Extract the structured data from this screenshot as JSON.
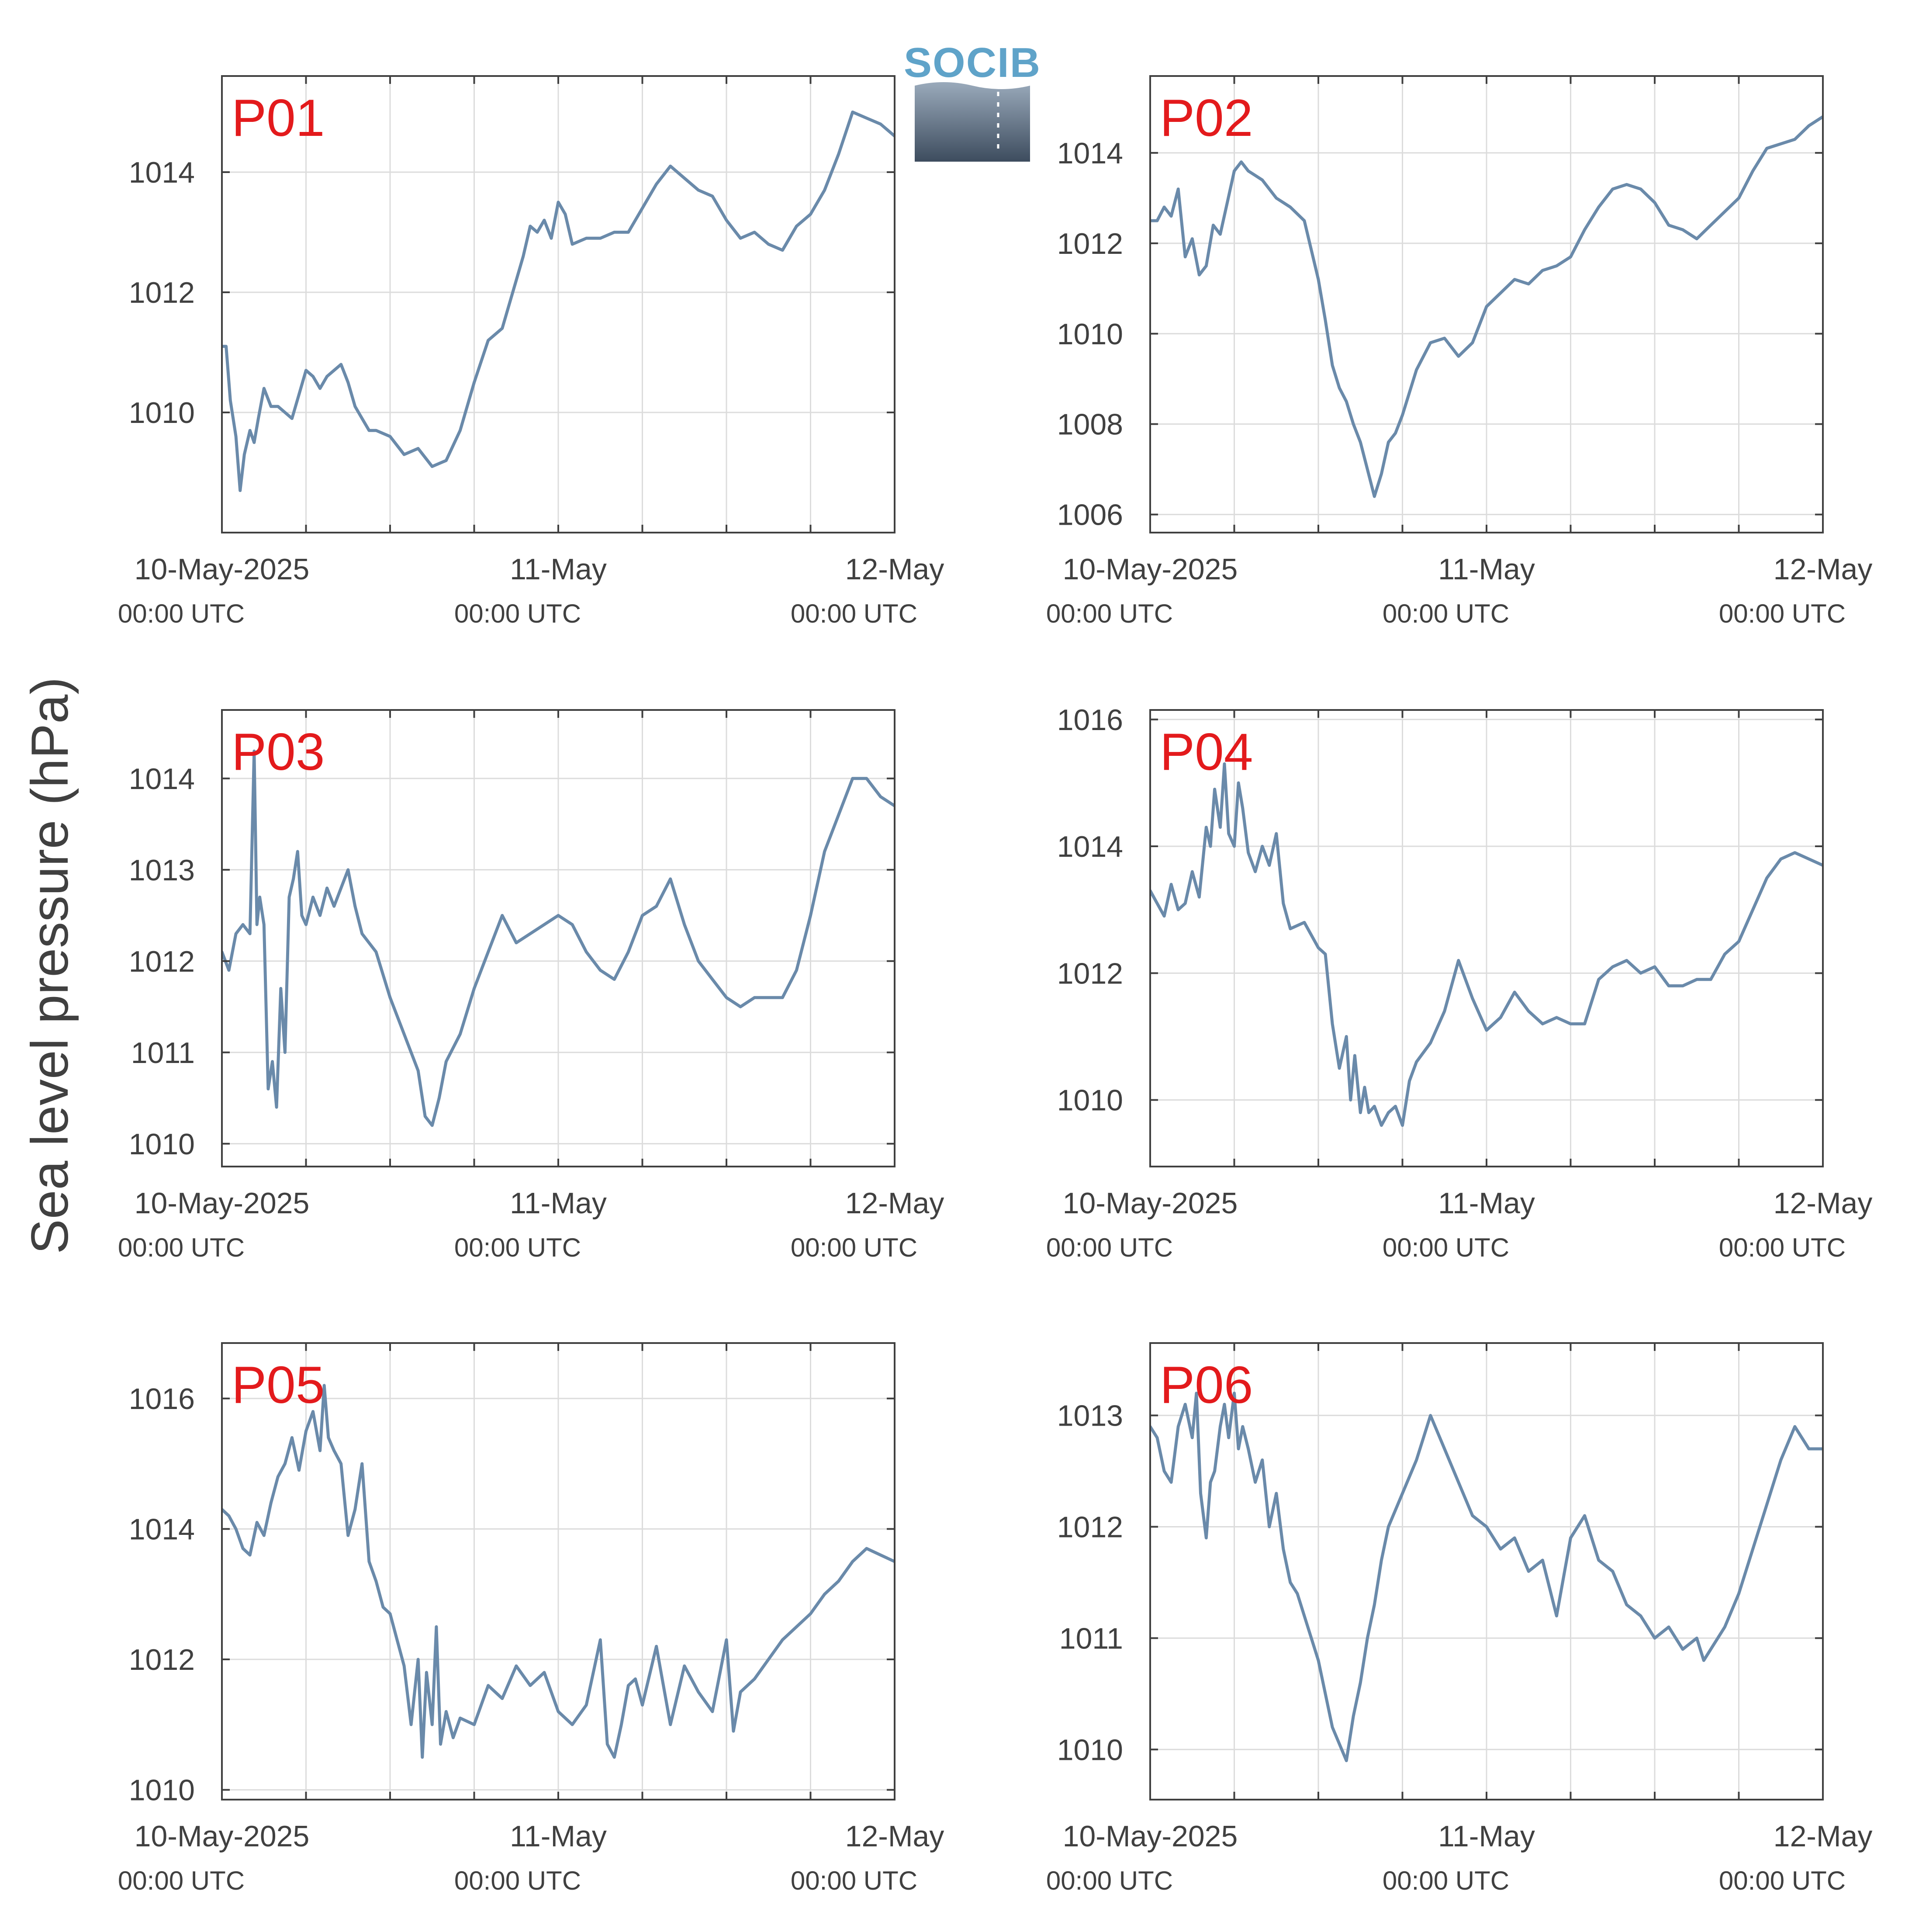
{
  "figure": {
    "ylabel": "Sea level pressure (hPa)",
    "logo": {
      "text": "SOCIB",
      "icon": "socib-logo-icon",
      "colors": {
        "text": "#5fa3c9",
        "gradient_top": "#9aaabb",
        "gradient_bottom": "#3d4c5e"
      }
    },
    "colors": {
      "line": "#6a8aaa",
      "panel_label": "#e31a1c",
      "grid": "#dcdcdc",
      "axis": "#404040"
    }
  },
  "chart_data": [
    {
      "type": "line",
      "title": "P01",
      "x_unit": "hours since 10-May-2025 00:00 UTC",
      "xlim": [
        0,
        48
      ],
      "xticks": [
        0,
        6,
        12,
        18,
        24,
        30,
        36,
        42,
        48
      ],
      "xtick_labels": [
        {
          "x": 0,
          "date": "10-May-2025",
          "time": "00:00 UTC"
        },
        {
          "x": 24,
          "date": "11-May",
          "time": "00:00 UTC"
        },
        {
          "x": 48,
          "date": "12-May",
          "time": "00:00 UTC"
        }
      ],
      "ylim": [
        1008,
        1015.6
      ],
      "yticks": [
        1010,
        1012,
        1014
      ],
      "grid": true,
      "x": [
        0,
        0.3,
        0.6,
        1,
        1.3,
        1.6,
        2,
        2.3,
        2.6,
        3,
        3.5,
        4,
        4.5,
        5,
        5.5,
        6,
        6.5,
        7,
        7.5,
        8,
        8.5,
        9,
        9.5,
        10,
        10.5,
        11,
        12,
        13,
        14,
        15,
        16,
        17,
        18,
        19,
        20,
        21,
        21.5,
        22,
        22.5,
        23,
        23.5,
        24,
        24.5,
        25,
        26,
        27,
        28,
        29,
        30,
        31,
        32,
        33,
        34,
        35,
        36,
        37,
        38,
        39,
        40,
        41,
        42,
        43,
        44,
        45,
        46,
        47,
        48
      ],
      "series": [
        {
          "values": [
            1011.1,
            1011.1,
            1010.2,
            1009.6,
            1008.7,
            1009.3,
            1009.7,
            1009.5,
            1009.9,
            1010.4,
            1010.1,
            1010.1,
            1010.0,
            1009.9,
            1010.3,
            1010.7,
            1010.6,
            1010.4,
            1010.6,
            1010.7,
            1010.8,
            1010.5,
            1010.1,
            1009.9,
            1009.7,
            1009.7,
            1009.6,
            1009.3,
            1009.4,
            1009.1,
            1009.2,
            1009.7,
            1010.5,
            1011.2,
            1011.4,
            1012.2,
            1012.6,
            1013.1,
            1013.0,
            1013.2,
            1012.9,
            1013.5,
            1013.3,
            1012.8,
            1012.9,
            1012.9,
            1013.0,
            1013.0,
            1013.4,
            1013.8,
            1014.1,
            1013.9,
            1013.7,
            1013.6,
            1013.2,
            1012.9,
            1013.0,
            1012.8,
            1012.7,
            1013.1,
            1013.3,
            1013.7,
            1014.3,
            1015.0,
            1014.9,
            1014.8,
            1014.6
          ]
        }
      ]
    },
    {
      "type": "line",
      "title": "P02",
      "x_unit": "hours since 10-May-2025 00:00 UTC",
      "xlim": [
        0,
        48
      ],
      "xticks": [
        0,
        6,
        12,
        18,
        24,
        30,
        36,
        42,
        48
      ],
      "xtick_labels": [
        {
          "x": 0,
          "date": "10-May-2025",
          "time": "00:00 UTC"
        },
        {
          "x": 24,
          "date": "11-May",
          "time": "00:00 UTC"
        },
        {
          "x": 48,
          "date": "12-May",
          "time": "00:00 UTC"
        }
      ],
      "ylim": [
        1005.6,
        1015.7
      ],
      "yticks": [
        1006,
        1008,
        1010,
        1012,
        1014
      ],
      "grid": true,
      "x": [
        0,
        0.5,
        1,
        1.5,
        2,
        2.5,
        3,
        3.5,
        4,
        4.5,
        5,
        5.5,
        6,
        6.5,
        7,
        7.5,
        8,
        9,
        10,
        11,
        12,
        12.5,
        13,
        13.5,
        14,
        14.5,
        15,
        15.5,
        16,
        16.5,
        17,
        17.5,
        18,
        19,
        20,
        21,
        22,
        23,
        24,
        25,
        26,
        27,
        28,
        29,
        30,
        31,
        32,
        33,
        34,
        35,
        36,
        37,
        38,
        39,
        40,
        41,
        42,
        43,
        44,
        45,
        46,
        47,
        48
      ],
      "series": [
        {
          "values": [
            1012.5,
            1012.5,
            1012.8,
            1012.6,
            1013.2,
            1011.7,
            1012.1,
            1011.3,
            1011.5,
            1012.4,
            1012.2,
            1012.9,
            1013.6,
            1013.8,
            1013.6,
            1013.5,
            1013.4,
            1013.0,
            1012.8,
            1012.5,
            1011.2,
            1010.3,
            1009.3,
            1008.8,
            1008.5,
            1008.0,
            1007.6,
            1007.0,
            1006.4,
            1006.9,
            1007.6,
            1007.8,
            1008.2,
            1009.2,
            1009.8,
            1009.9,
            1009.5,
            1009.8,
            1010.6,
            1010.9,
            1011.2,
            1011.1,
            1011.4,
            1011.5,
            1011.7,
            1012.3,
            1012.8,
            1013.2,
            1013.3,
            1013.2,
            1012.9,
            1012.4,
            1012.3,
            1012.1,
            1012.4,
            1012.7,
            1013.0,
            1013.6,
            1014.1,
            1014.2,
            1014.3,
            1014.6,
            1014.8
          ]
        }
      ]
    },
    {
      "type": "line",
      "title": "P03",
      "x_unit": "hours since 10-May-2025 00:00 UTC",
      "xlim": [
        0,
        48
      ],
      "xticks": [
        0,
        6,
        12,
        18,
        24,
        30,
        36,
        42,
        48
      ],
      "xtick_labels": [
        {
          "x": 0,
          "date": "10-May-2025",
          "time": "00:00 UTC"
        },
        {
          "x": 24,
          "date": "11-May",
          "time": "00:00 UTC"
        },
        {
          "x": 48,
          "date": "12-May",
          "time": "00:00 UTC"
        }
      ],
      "ylim": [
        1009.75,
        1014.75
      ],
      "yticks": [
        1010,
        1011,
        1012,
        1013,
        1014
      ],
      "grid": true,
      "x": [
        0,
        0.5,
        1,
        1.5,
        2,
        2.3,
        2.5,
        2.7,
        3,
        3.3,
        3.6,
        3.9,
        4.2,
        4.5,
        4.8,
        5.1,
        5.4,
        5.7,
        6,
        6.5,
        7,
        7.5,
        8,
        8.5,
        9,
        9.5,
        10,
        11,
        12,
        13,
        14,
        14.5,
        15,
        15.5,
        16,
        17,
        18,
        19,
        20,
        21,
        22,
        23,
        24,
        25,
        26,
        27,
        28,
        29,
        30,
        31,
        32,
        33,
        34,
        35,
        36,
        37,
        38,
        39,
        40,
        41,
        42,
        43,
        44,
        45,
        46,
        47,
        48
      ],
      "series": [
        {
          "values": [
            1012.1,
            1011.9,
            1012.3,
            1012.4,
            1012.3,
            1014.3,
            1012.4,
            1012.7,
            1012.4,
            1010.6,
            1010.9,
            1010.4,
            1011.7,
            1011.0,
            1012.7,
            1012.9,
            1013.2,
            1012.5,
            1012.4,
            1012.7,
            1012.5,
            1012.8,
            1012.6,
            1012.8,
            1013.0,
            1012.6,
            1012.3,
            1012.1,
            1011.6,
            1011.2,
            1010.8,
            1010.3,
            1010.2,
            1010.5,
            1010.9,
            1011.2,
            1011.7,
            1012.1,
            1012.5,
            1012.2,
            1012.3,
            1012.4,
            1012.5,
            1012.4,
            1012.1,
            1011.9,
            1011.8,
            1012.1,
            1012.5,
            1012.6,
            1012.9,
            1012.4,
            1012.0,
            1011.8,
            1011.6,
            1011.5,
            1011.6,
            1011.6,
            1011.6,
            1011.9,
            1012.5,
            1013.2,
            1013.6,
            1014.0,
            1014.0,
            1013.8,
            1013.7
          ]
        }
      ]
    },
    {
      "type": "line",
      "title": "P04",
      "x_unit": "hours since 10-May-2025 00:00 UTC",
      "xlim": [
        0,
        48
      ],
      "xticks": [
        0,
        6,
        12,
        18,
        24,
        30,
        36,
        42,
        48
      ],
      "xtick_labels": [
        {
          "x": 0,
          "date": "10-May-2025",
          "time": "00:00 UTC"
        },
        {
          "x": 24,
          "date": "11-May",
          "time": "00:00 UTC"
        },
        {
          "x": 48,
          "date": "12-May",
          "time": "00:00 UTC"
        }
      ],
      "ylim": [
        1008.95,
        1016.15
      ],
      "yticks": [
        1010,
        1012,
        1014,
        1016
      ],
      "grid": true,
      "x": [
        0,
        0.5,
        1,
        1.5,
        2,
        2.5,
        3,
        3.5,
        4,
        4.3,
        4.6,
        5,
        5.3,
        5.6,
        6,
        6.3,
        6.6,
        7,
        7.5,
        8,
        8.5,
        9,
        9.5,
        10,
        11,
        12,
        12.5,
        13,
        13.5,
        14,
        14.3,
        14.6,
        15,
        15.3,
        15.6,
        16,
        16.5,
        17,
        17.5,
        18,
        18.5,
        19,
        20,
        21,
        22,
        23,
        24,
        25,
        26,
        27,
        28,
        29,
        30,
        31,
        32,
        33,
        34,
        35,
        36,
        37,
        38,
        39,
        40,
        41,
        42,
        43,
        44,
        45,
        46,
        47,
        48
      ],
      "series": [
        {
          "values": [
            1013.3,
            1013.1,
            1012.9,
            1013.4,
            1013.0,
            1013.1,
            1013.6,
            1013.2,
            1014.3,
            1014.0,
            1014.9,
            1014.3,
            1015.3,
            1014.2,
            1014.0,
            1015.0,
            1014.6,
            1013.9,
            1013.6,
            1014.0,
            1013.7,
            1014.2,
            1013.1,
            1012.7,
            1012.8,
            1012.4,
            1012.3,
            1011.2,
            1010.5,
            1011.0,
            1010.0,
            1010.7,
            1009.8,
            1010.2,
            1009.8,
            1009.9,
            1009.6,
            1009.8,
            1009.9,
            1009.6,
            1010.3,
            1010.6,
            1010.9,
            1011.4,
            1012.2,
            1011.6,
            1011.1,
            1011.3,
            1011.7,
            1011.4,
            1011.2,
            1011.3,
            1011.2,
            1011.2,
            1011.9,
            1012.1,
            1012.2,
            1012.0,
            1012.1,
            1011.8,
            1011.8,
            1011.9,
            1011.9,
            1012.3,
            1012.5,
            1013.0,
            1013.5,
            1013.8,
            1013.9,
            1013.8,
            1013.7
          ]
        }
      ]
    },
    {
      "type": "line",
      "title": "P05",
      "x_unit": "hours since 10-May-2025 00:00 UTC",
      "xlim": [
        0,
        48
      ],
      "xticks": [
        0,
        6,
        12,
        18,
        24,
        30,
        36,
        42,
        48
      ],
      "xtick_labels": [
        {
          "x": 0,
          "date": "10-May-2025",
          "time": "00:00 UTC"
        },
        {
          "x": 24,
          "date": "11-May",
          "time": "00:00 UTC"
        },
        {
          "x": 48,
          "date": "12-May",
          "time": "00:00 UTC"
        }
      ],
      "ylim": [
        1009.85,
        1016.85
      ],
      "yticks": [
        1010,
        1012,
        1014,
        1016
      ],
      "grid": true,
      "x": [
        0,
        0.5,
        1,
        1.5,
        2,
        2.5,
        3,
        3.5,
        4,
        4.5,
        5,
        5.5,
        6,
        6.5,
        7,
        7.3,
        7.6,
        8,
        8.5,
        9,
        9.5,
        10,
        10.5,
        11,
        11.5,
        12,
        12.5,
        13,
        13.5,
        14,
        14.3,
        14.6,
        15,
        15.3,
        15.6,
        16,
        16.5,
        17,
        18,
        19,
        20,
        21,
        22,
        23,
        24,
        25,
        26,
        27,
        27.5,
        28,
        28.5,
        29,
        29.5,
        30,
        31,
        32,
        33,
        34,
        35,
        36,
        36.5,
        37,
        38,
        39,
        40,
        41,
        42,
        43,
        44,
        45,
        46,
        47,
        48
      ],
      "series": [
        {
          "values": [
            1014.3,
            1014.2,
            1014.0,
            1013.7,
            1013.6,
            1014.1,
            1013.9,
            1014.4,
            1014.8,
            1015.0,
            1015.4,
            1014.9,
            1015.5,
            1015.8,
            1015.2,
            1016.2,
            1015.4,
            1015.2,
            1015.0,
            1013.9,
            1014.3,
            1015.0,
            1013.5,
            1013.2,
            1012.8,
            1012.7,
            1012.3,
            1011.9,
            1011.0,
            1012.0,
            1010.5,
            1011.8,
            1011.0,
            1012.5,
            1010.7,
            1011.2,
            1010.8,
            1011.1,
            1011.0,
            1011.6,
            1011.4,
            1011.9,
            1011.6,
            1011.8,
            1011.2,
            1011.0,
            1011.3,
            1012.3,
            1010.7,
            1010.5,
            1011.0,
            1011.6,
            1011.7,
            1011.3,
            1012.2,
            1011.0,
            1011.9,
            1011.5,
            1011.2,
            1012.3,
            1010.9,
            1011.5,
            1011.7,
            1012.0,
            1012.3,
            1012.5,
            1012.7,
            1013.0,
            1013.2,
            1013.5,
            1013.7,
            1013.6,
            1013.5
          ]
        }
      ]
    },
    {
      "type": "line",
      "title": "P06",
      "x_unit": "hours since 10-May-2025 00:00 UTC",
      "xlim": [
        0,
        48
      ],
      "xticks": [
        0,
        6,
        12,
        18,
        24,
        30,
        36,
        42,
        48
      ],
      "xtick_labels": [
        {
          "x": 0,
          "date": "10-May-2025",
          "time": "00:00 UTC"
        },
        {
          "x": 24,
          "date": "11-May",
          "time": "00:00 UTC"
        },
        {
          "x": 48,
          "date": "12-May",
          "time": "00:00 UTC"
        }
      ],
      "ylim": [
        1009.55,
        1013.65
      ],
      "yticks": [
        1010,
        1011,
        1012,
        1013
      ],
      "grid": true,
      "x": [
        0,
        0.5,
        1,
        1.5,
        2,
        2.5,
        3,
        3.3,
        3.6,
        4,
        4.3,
        4.6,
        5,
        5.3,
        5.6,
        6,
        6.3,
        6.6,
        7,
        7.5,
        8,
        8.5,
        9,
        9.5,
        10,
        10.5,
        11,
        12,
        13,
        14,
        14.5,
        15,
        15.5,
        16,
        16.5,
        17,
        18,
        19,
        20,
        21,
        22,
        23,
        24,
        25,
        26,
        27,
        28,
        29,
        30,
        31,
        32,
        33,
        34,
        35,
        36,
        37,
        38,
        39,
        39.5,
        40,
        41,
        42,
        43,
        44,
        45,
        46,
        47,
        48
      ],
      "series": [
        {
          "values": [
            1012.9,
            1012.8,
            1012.5,
            1012.4,
            1012.9,
            1013.1,
            1012.8,
            1013.2,
            1012.3,
            1011.9,
            1012.4,
            1012.5,
            1012.9,
            1013.1,
            1012.8,
            1013.2,
            1012.7,
            1012.9,
            1012.7,
            1012.4,
            1012.6,
            1012.0,
            1012.3,
            1011.8,
            1011.5,
            1011.4,
            1011.2,
            1010.8,
            1010.2,
            1009.9,
            1010.3,
            1010.6,
            1011.0,
            1011.3,
            1011.7,
            1012.0,
            1012.3,
            1012.6,
            1013.0,
            1012.7,
            1012.4,
            1012.1,
            1012.0,
            1011.8,
            1011.9,
            1011.6,
            1011.7,
            1011.2,
            1011.9,
            1012.1,
            1011.7,
            1011.6,
            1011.3,
            1011.2,
            1011.0,
            1011.1,
            1010.9,
            1011.0,
            1010.8,
            1010.9,
            1011.1,
            1011.4,
            1011.8,
            1012.2,
            1012.6,
            1012.9,
            1012.7,
            1012.7
          ]
        }
      ]
    }
  ]
}
